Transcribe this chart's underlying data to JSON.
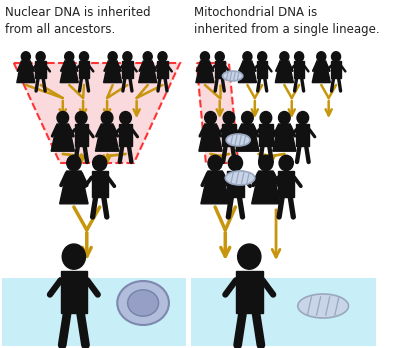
{
  "left_title": "Nuclear DNA is inherited\nfrom all ancestors.",
  "right_title": "Mitochondrial DNA is\ninherited from a single lineage.",
  "bg_color": "#ffffff",
  "pink_fill": "#fadadd",
  "pink_border": "#ff3333",
  "light_blue_fill": "#c8eef8",
  "arrow_color": "#c8960c",
  "person_color": "#111111",
  "mito_outer": "#b0b8cc",
  "mito_inner": "#d0d8e8",
  "nucleus_outer": "#8890b8",
  "nucleus_inner": "#a8b0cc",
  "title_fontsize": 9.0
}
